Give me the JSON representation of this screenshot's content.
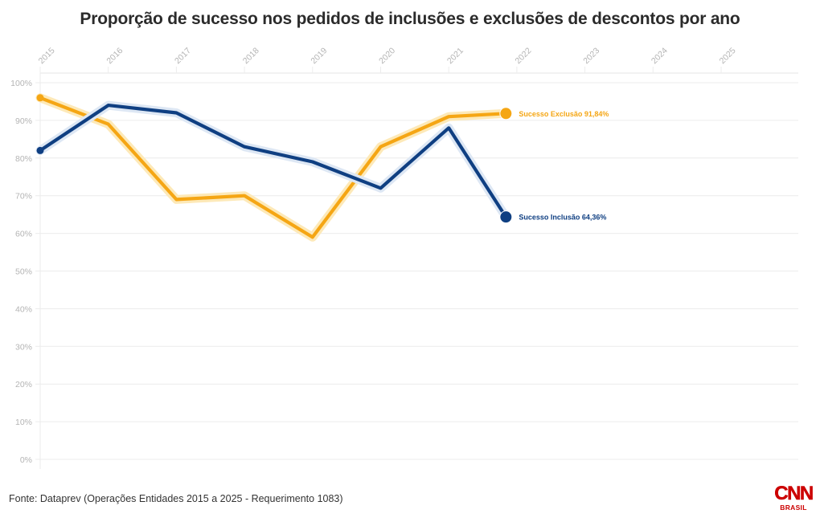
{
  "chart_data": {
    "type": "line",
    "title": "Proporção de sucesso nos pedidos de inclusões e exclusões de descontos por ano",
    "xlabel": "",
    "ylabel": "",
    "x_ticks": [
      "2015",
      "2016",
      "2017",
      "2018",
      "2019",
      "2020",
      "2021",
      "2022",
      "2023",
      "2024",
      "2025"
    ],
    "x_range": [
      2015,
      2025.9
    ],
    "y_ticks": [
      "0%",
      "10%",
      "20%",
      "30%",
      "40%",
      "50%",
      "60%",
      "70%",
      "80%",
      "90%",
      "100%"
    ],
    "ylim": [
      0,
      100
    ],
    "grid": true,
    "series": [
      {
        "name": "Sucesso Exclusão",
        "color": "#f5a614",
        "halo": "#fde9b8",
        "end_label": "Sucesso Exclusão 91,84%",
        "x": [
          2015,
          2016,
          2017,
          2018,
          2019,
          2020,
          2021,
          2021.84
        ],
        "values": [
          96,
          89,
          69,
          70,
          59,
          83,
          91,
          91.84
        ]
      },
      {
        "name": "Sucesso Inclusão",
        "color": "#0f3f82",
        "halo": "#dde7f4",
        "end_label": "Sucesso Inclusão 64,36%",
        "x": [
          2015,
          2016,
          2017,
          2018,
          2019,
          2020,
          2021,
          2021.84
        ],
        "values": [
          82,
          94,
          92,
          83,
          79,
          72,
          88,
          64.36
        ]
      }
    ]
  },
  "footer": {
    "source": "Fonte: Dataprev (Operações Entidades 2015 a 2025 - Requerimento 1083)",
    "logo_main": "CNN",
    "logo_sub": "BRASIL",
    "logo_color": "#cc0000"
  }
}
